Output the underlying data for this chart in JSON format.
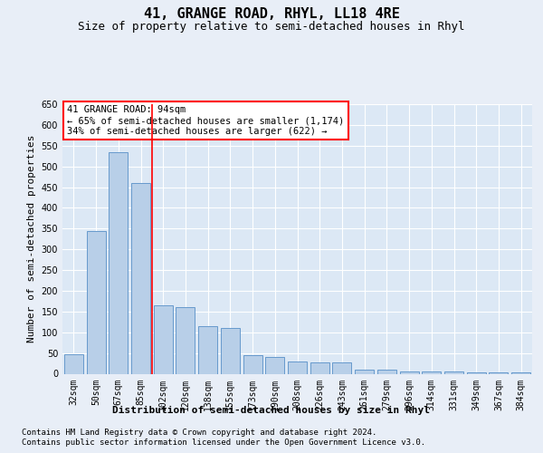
{
  "title": "41, GRANGE ROAD, RHYL, LL18 4RE",
  "subtitle": "Size of property relative to semi-detached houses in Rhyl",
  "xlabel": "Distribution of semi-detached houses by size in Rhyl",
  "ylabel": "Number of semi-detached properties",
  "footer_line1": "Contains HM Land Registry data © Crown copyright and database right 2024.",
  "footer_line2": "Contains public sector information licensed under the Open Government Licence v3.0.",
  "categories": [
    "32sqm",
    "50sqm",
    "67sqm",
    "85sqm",
    "102sqm",
    "120sqm",
    "138sqm",
    "155sqm",
    "173sqm",
    "190sqm",
    "208sqm",
    "226sqm",
    "243sqm",
    "261sqm",
    "279sqm",
    "296sqm",
    "314sqm",
    "331sqm",
    "349sqm",
    "367sqm",
    "384sqm"
  ],
  "values": [
    47,
    345,
    535,
    460,
    165,
    160,
    115,
    110,
    45,
    40,
    30,
    28,
    27,
    10,
    10,
    5,
    5,
    5,
    3,
    3,
    3
  ],
  "bar_color": "#b8cfe8",
  "bar_edge_color": "#6699cc",
  "vline_x": 3.5,
  "vline_color": "red",
  "annotation_title": "41 GRANGE ROAD: 94sqm",
  "annotation_line1": "← 65% of semi-detached houses are smaller (1,174)",
  "annotation_line2": "34% of semi-detached houses are larger (622) →",
  "annotation_box_color": "red",
  "ylim": [
    0,
    650
  ],
  "yticks": [
    0,
    50,
    100,
    150,
    200,
    250,
    300,
    350,
    400,
    450,
    500,
    550,
    600,
    650
  ],
  "bg_color": "#e8eef7",
  "plot_bg_color": "#dce8f5",
  "grid_color": "white",
  "title_fontsize": 11,
  "subtitle_fontsize": 9,
  "ylabel_fontsize": 8,
  "tick_fontsize": 7,
  "annotation_fontsize": 7.5,
  "xlabel_fontsize": 8,
  "footer_fontsize": 6.5
}
